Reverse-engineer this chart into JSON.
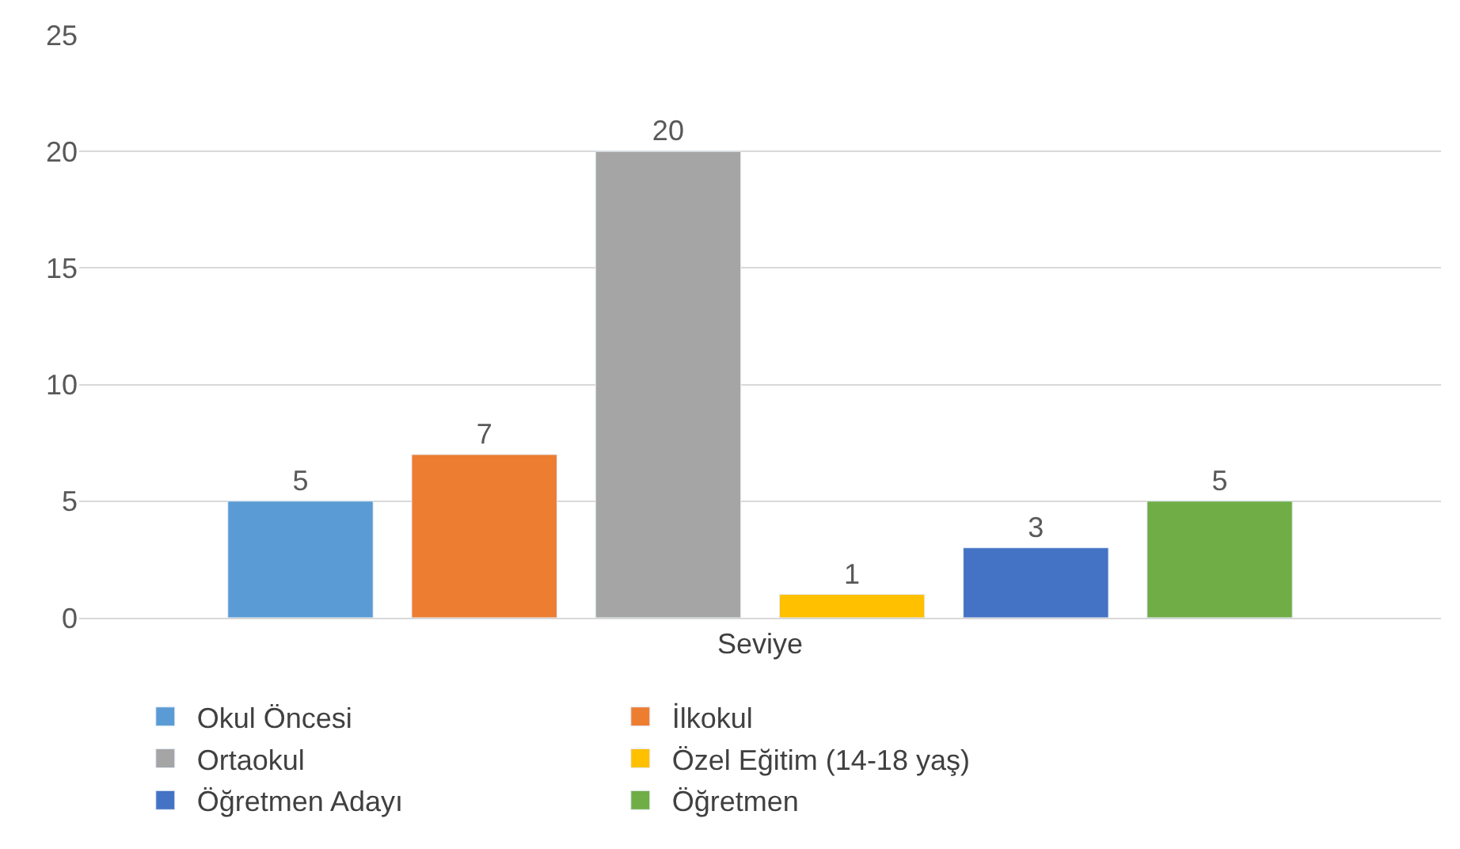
{
  "chart_data": {
    "type": "bar",
    "categories": [
      "Seviye"
    ],
    "series": [
      {
        "name": "Okul Öncesi",
        "color": "#5b9bd5",
        "values": [
          5
        ]
      },
      {
        "name": "İlkokul",
        "color": "#ed7d31",
        "values": [
          7
        ]
      },
      {
        "name": "Ortaokul",
        "color": "#a5a5a5",
        "values": [
          20
        ]
      },
      {
        "name": "Özel Eğitim (14-18 yaş)",
        "color": "#ffc000",
        "values": [
          1
        ]
      },
      {
        "name": "Öğretmen Adayı",
        "color": "#4472c4",
        "values": [
          3
        ]
      },
      {
        "name": "Öğretmen",
        "color": "#70ad47",
        "values": [
          5
        ]
      }
    ],
    "ylim": [
      0,
      25
    ],
    "yticks": [
      0,
      5,
      10,
      15,
      20,
      25
    ],
    "grid": "y",
    "legend": "bottom",
    "data_labels": true
  }
}
